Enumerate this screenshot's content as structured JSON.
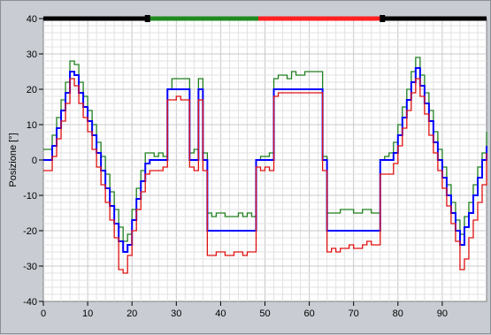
{
  "chart_data": {
    "type": "line",
    "title": "",
    "xlabel": "",
    "ylabel": "Posizione [°]",
    "xlim": [
      0,
      100
    ],
    "ylim": [
      -40,
      40
    ],
    "xticks": [
      0,
      10,
      20,
      30,
      40,
      50,
      60,
      70,
      80,
      90
    ],
    "yticks": [
      40,
      30,
      20,
      10,
      0,
      -10,
      -20,
      -30,
      -40
    ],
    "grid": true,
    "legend": "none",
    "phase_bar": [
      {
        "x0": 0,
        "x1": 23.5,
        "color": "#000000"
      },
      {
        "x0": 23.5,
        "x1": 48.5,
        "color": "#1f8a1f"
      },
      {
        "x0": 48.5,
        "x1": 76.5,
        "color": "#ff2020"
      },
      {
        "x0": 76.5,
        "x1": 100,
        "color": "#000000"
      }
    ],
    "series": [
      {
        "color": "#1f7f1f",
        "x": [
          0,
          1,
          2,
          3,
          4,
          5,
          6,
          7,
          8,
          9,
          10,
          11,
          12,
          13,
          14,
          15,
          16,
          17,
          18,
          19,
          20,
          21,
          22,
          23,
          24,
          25,
          26,
          27,
          28,
          29,
          30,
          31,
          32,
          33,
          34,
          35,
          36,
          37,
          38,
          39,
          40,
          41,
          42,
          43,
          44,
          45,
          46,
          47,
          48,
          49,
          50,
          51,
          52,
          53,
          54,
          55,
          56,
          57,
          58,
          59,
          60,
          61,
          62,
          63,
          64,
          65,
          66,
          67,
          68,
          69,
          70,
          71,
          72,
          73,
          74,
          75,
          76,
          77,
          78,
          79,
          80,
          81,
          82,
          83,
          84,
          85,
          86,
          87,
          88,
          89,
          90,
          91,
          92,
          93,
          94,
          95,
          96,
          97,
          98,
          99,
          100
        ],
        "y": [
          3,
          3,
          7,
          12,
          17,
          22,
          28,
          27,
          22,
          18,
          14,
          10,
          5,
          1,
          -4,
          -9,
          -14,
          -19,
          -23,
          -21,
          -14,
          -8,
          -3,
          2,
          2,
          1,
          2,
          1,
          20,
          23,
          23,
          23,
          23,
          2,
          3,
          23,
          2,
          -15,
          -16,
          -15,
          -15,
          -16,
          -16,
          -16,
          -15,
          -16,
          -15,
          -16,
          0,
          1,
          1,
          2,
          23,
          24,
          24,
          23,
          25,
          24,
          24,
          25,
          25,
          25,
          25,
          1,
          -15,
          -15,
          -15,
          -14,
          -14,
          -14,
          -15,
          -15,
          -14,
          -14,
          -15,
          -15,
          0,
          1,
          2,
          5,
          10,
          15,
          20,
          25,
          29,
          24,
          19,
          14,
          8,
          3,
          -2,
          -7,
          -12,
          -17,
          -21,
          -16,
          -12,
          -7,
          -2,
          2,
          8
        ]
      },
      {
        "color": "#0000ff",
        "x": [
          0,
          1,
          2,
          3,
          4,
          5,
          6,
          7,
          8,
          9,
          10,
          11,
          12,
          13,
          14,
          15,
          16,
          17,
          18,
          19,
          20,
          21,
          22,
          23,
          24,
          25,
          26,
          27,
          28,
          29,
          30,
          31,
          32,
          33,
          34,
          35,
          36,
          37,
          38,
          39,
          40,
          41,
          42,
          43,
          44,
          45,
          46,
          47,
          48,
          49,
          50,
          51,
          52,
          53,
          54,
          55,
          56,
          57,
          58,
          59,
          60,
          61,
          62,
          63,
          64,
          65,
          66,
          67,
          68,
          69,
          70,
          71,
          72,
          73,
          74,
          75,
          76,
          77,
          78,
          79,
          80,
          81,
          82,
          83,
          84,
          85,
          86,
          87,
          88,
          89,
          90,
          91,
          92,
          93,
          94,
          95,
          96,
          97,
          98,
          99,
          100
        ],
        "y": [
          0,
          0,
          4,
          9,
          14,
          19,
          25,
          24,
          19,
          15,
          11,
          7,
          2,
          -3,
          -8,
          -13,
          -18,
          -23,
          -26,
          -24,
          -17,
          -11,
          -6,
          -1,
          0,
          0,
          0,
          0,
          20,
          20,
          20,
          20,
          20,
          0,
          0,
          20,
          0,
          -20,
          -20,
          -20,
          -20,
          -20,
          -20,
          -20,
          -20,
          -20,
          -20,
          -20,
          0,
          0,
          0,
          0,
          20,
          20,
          20,
          20,
          20,
          20,
          20,
          20,
          20,
          20,
          20,
          0,
          -20,
          -20,
          -20,
          -20,
          -20,
          -20,
          -20,
          -20,
          -20,
          -20,
          -20,
          -20,
          0,
          0,
          0,
          2,
          7,
          12,
          17,
          22,
          26,
          21,
          16,
          11,
          5,
          0,
          -5,
          -10,
          -15,
          -20,
          -24,
          -19,
          -15,
          -10,
          -5,
          0,
          4
        ]
      },
      {
        "color": "#e01010",
        "x": [
          0,
          1,
          2,
          3,
          4,
          5,
          6,
          7,
          8,
          9,
          10,
          11,
          12,
          13,
          14,
          15,
          16,
          17,
          18,
          19,
          20,
          21,
          22,
          23,
          24,
          25,
          26,
          27,
          28,
          29,
          30,
          31,
          32,
          33,
          34,
          35,
          36,
          37,
          38,
          39,
          40,
          41,
          42,
          43,
          44,
          45,
          46,
          47,
          48,
          49,
          50,
          51,
          52,
          53,
          54,
          55,
          56,
          57,
          58,
          59,
          60,
          61,
          62,
          63,
          64,
          65,
          66,
          67,
          68,
          69,
          70,
          71,
          72,
          73,
          74,
          75,
          76,
          77,
          78,
          79,
          80,
          81,
          82,
          83,
          84,
          85,
          86,
          87,
          88,
          89,
          90,
          91,
          92,
          93,
          94,
          95,
          96,
          97,
          98,
          99,
          100
        ],
        "y": [
          -3,
          -3,
          1,
          6,
          11,
          16,
          23,
          21,
          16,
          12,
          8,
          3,
          -2,
          -7,
          -12,
          -17,
          -22,
          -31,
          -32,
          -27,
          -20,
          -14,
          -9,
          -4,
          -3,
          -3,
          -3,
          -2,
          17,
          17,
          18,
          17,
          17,
          -2,
          -3,
          17,
          -3,
          -27,
          -27,
          -26,
          -26,
          -27,
          -27,
          -26,
          -26,
          -27,
          -26,
          -26,
          -2,
          -3,
          -2,
          -3,
          18,
          19,
          19,
          19,
          19,
          19,
          19,
          19,
          19,
          19,
          19,
          -3,
          -26,
          -25,
          -26,
          -25,
          -25,
          -24,
          -25,
          -25,
          -24,
          -23,
          -24,
          -24,
          -4,
          -4,
          -4,
          -1,
          4,
          9,
          14,
          19,
          23,
          18,
          13,
          7,
          2,
          -3,
          -8,
          -13,
          -18,
          -23,
          -31,
          -28,
          -22,
          -17,
          -12,
          -7,
          2
        ]
      }
    ]
  }
}
